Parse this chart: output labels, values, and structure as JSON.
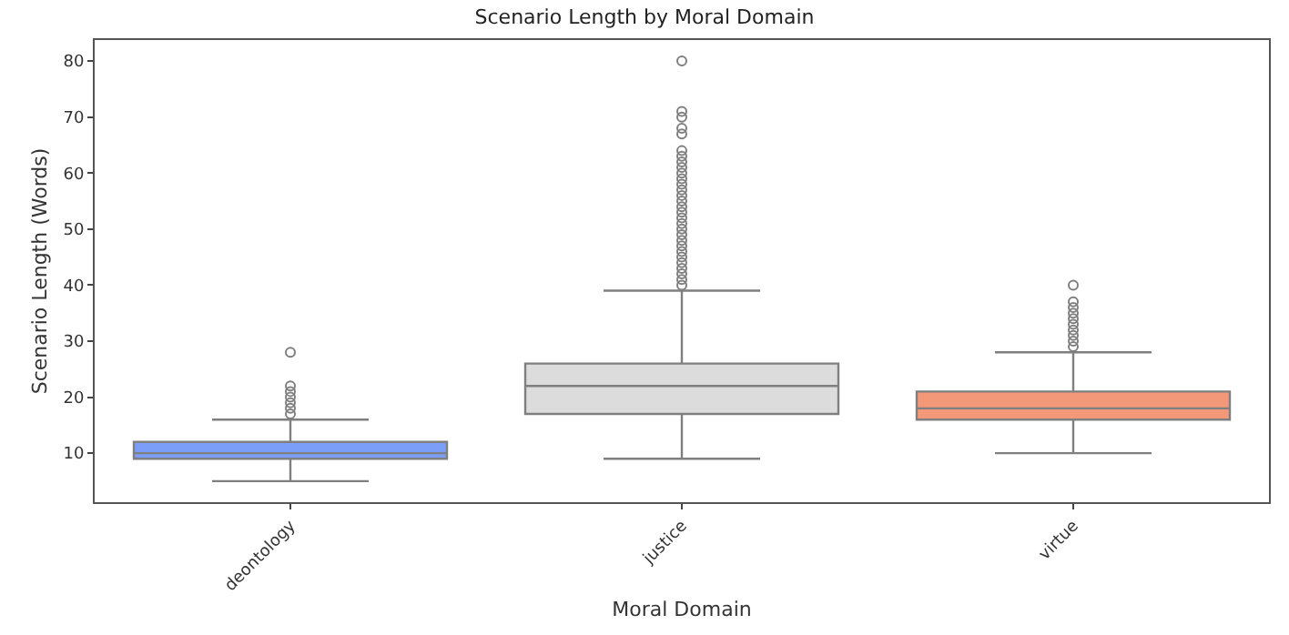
{
  "chart_data": {
    "type": "box",
    "title": "Scenario Length by Moral Domain",
    "xlabel": "Moral Domain",
    "ylabel": "Scenario Length (Words)",
    "categories": [
      "deontology",
      "justice",
      "virtue"
    ],
    "colors": [
      "#7b9ff9",
      "#dcdcdc",
      "#f4987a"
    ],
    "boxes": [
      {
        "low": 5,
        "q1": 9,
        "median": 10,
        "q3": 12,
        "high": 16,
        "outliers": [
          17,
          18,
          19,
          20,
          21,
          22,
          28
        ]
      },
      {
        "low": 9,
        "q1": 17,
        "median": 22,
        "q3": 26,
        "high": 39,
        "outliers": [
          40,
          41,
          42,
          43,
          44,
          45,
          46,
          47,
          48,
          49,
          50,
          51,
          52,
          53,
          54,
          55,
          56,
          57,
          58,
          59,
          60,
          61,
          62,
          63,
          64,
          67,
          68,
          70,
          71,
          80
        ]
      },
      {
        "low": 10,
        "q1": 16,
        "median": 18,
        "q3": 21,
        "high": 28,
        "outliers": [
          29,
          30,
          31,
          32,
          33,
          34,
          35,
          36,
          37,
          40
        ]
      }
    ],
    "ylim": [
      1.25,
      83.75
    ],
    "yticks": [
      10,
      20,
      30,
      40,
      50,
      60,
      70,
      80
    ]
  }
}
